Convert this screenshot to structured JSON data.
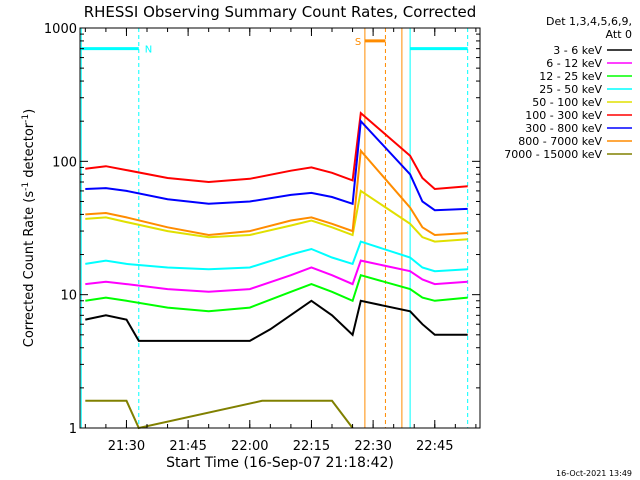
{
  "chart_data": {
    "type": "line",
    "title": "RHESSI Observing Summary Count Rates, Corrected",
    "xlabel": "Start Time (16-Sep-07 21:18:42)",
    "ylabel_main": "Corrected Count Rate (s",
    "ylabel_sup1": "-1",
    "ylabel_mid": " detector",
    "ylabel_sup2": "-1",
    "ylabel_end": ")",
    "y_scale": "log",
    "ylim": [
      1,
      1000
    ],
    "xlim": [
      "21:18:42",
      "22:56:00"
    ],
    "x_tick_labels": [
      "21:30",
      "21:45",
      "22:00",
      "22:15",
      "22:30",
      "22:45"
    ],
    "y_tick_labels": [
      "1",
      "10",
      "100",
      "1000"
    ],
    "legend_header": [
      "Det 1,3,4,5,6,9,",
      "Att 0"
    ],
    "legend_position": "right",
    "footer": "16-Oct-2021 13:49",
    "series": [
      {
        "name": "3 - 6 keV",
        "color": "#000000",
        "x": [
          "21:20",
          "21:25",
          "21:30",
          "21:33",
          "21:45",
          "22:00",
          "22:05",
          "22:15",
          "22:20",
          "22:25",
          "22:27",
          "22:39",
          "22:42",
          "22:45",
          "22:53"
        ],
        "y": [
          6.5,
          7.0,
          6.5,
          4.5,
          4.5,
          4.5,
          5.5,
          9.0,
          7.0,
          5.0,
          9.0,
          7.5,
          6.0,
          5.0,
          5.0
        ]
      },
      {
        "name": "6 - 12 keV",
        "color": "#ff00ff",
        "x": [
          "21:20",
          "21:25",
          "21:30",
          "21:40",
          "21:50",
          "22:00",
          "22:10",
          "22:15",
          "22:20",
          "22:25",
          "22:27",
          "22:39",
          "22:42",
          "22:45",
          "22:53"
        ],
        "y": [
          12,
          12.5,
          12,
          11,
          10.5,
          11,
          14,
          16,
          14,
          12,
          18,
          15,
          13,
          12,
          12.5
        ]
      },
      {
        "name": "12 - 25 keV",
        "color": "#00ff00",
        "x": [
          "21:20",
          "21:25",
          "21:30",
          "21:40",
          "21:50",
          "22:00",
          "22:10",
          "22:15",
          "22:20",
          "22:25",
          "22:27",
          "22:39",
          "22:42",
          "22:45",
          "22:53"
        ],
        "y": [
          9.0,
          9.5,
          9.0,
          8.0,
          7.5,
          8.0,
          10.5,
          12,
          10.5,
          9.0,
          14,
          11,
          9.5,
          9.0,
          9.5
        ]
      },
      {
        "name": "25 - 50 keV",
        "color": "#00ffff",
        "x": [
          "21:20",
          "21:25",
          "21:30",
          "21:40",
          "21:50",
          "22:00",
          "22:10",
          "22:15",
          "22:20",
          "22:25",
          "22:27",
          "22:39",
          "22:42",
          "22:45",
          "22:53"
        ],
        "y": [
          17,
          18,
          17,
          16,
          15.5,
          16,
          20,
          22,
          19,
          17,
          25,
          19,
          16,
          15,
          15.5
        ]
      },
      {
        "name": "50 - 100 keV",
        "color": "#e0e000",
        "x": [
          "21:20",
          "21:25",
          "21:30",
          "21:40",
          "21:50",
          "22:00",
          "22:10",
          "22:15",
          "22:20",
          "22:25",
          "22:27",
          "22:39",
          "22:42",
          "22:45",
          "22:53"
        ],
        "y": [
          37,
          38,
          35,
          30,
          27,
          28,
          33,
          36,
          32,
          28,
          60,
          34,
          27,
          25,
          26
        ]
      },
      {
        "name": "100 - 300 keV",
        "color": "#ff0000",
        "x": [
          "21:20",
          "21:25",
          "21:30",
          "21:40",
          "21:50",
          "22:00",
          "22:10",
          "22:15",
          "22:20",
          "22:25",
          "22:27",
          "22:39",
          "22:42",
          "22:45",
          "22:53"
        ],
        "y": [
          88,
          92,
          86,
          75,
          70,
          74,
          85,
          90,
          82,
          72,
          230,
          110,
          75,
          62,
          65
        ]
      },
      {
        "name": "300 - 800 keV",
        "color": "#0000ff",
        "x": [
          "21:20",
          "21:25",
          "21:30",
          "21:40",
          "21:50",
          "22:00",
          "22:10",
          "22:15",
          "22:20",
          "22:25",
          "22:27",
          "22:39",
          "22:42",
          "22:45",
          "22:53"
        ],
        "y": [
          62,
          63,
          60,
          52,
          48,
          50,
          56,
          58,
          54,
          48,
          200,
          80,
          50,
          43,
          44
        ]
      },
      {
        "name": "800 - 7000 keV",
        "color": "#ff8c00",
        "x": [
          "21:20",
          "21:25",
          "21:30",
          "21:40",
          "21:50",
          "22:00",
          "22:10",
          "22:15",
          "22:20",
          "22:25",
          "22:27",
          "22:39",
          "22:42",
          "22:45",
          "22:53"
        ],
        "y": [
          40,
          41,
          38,
          32,
          28,
          30,
          36,
          38,
          34,
          30,
          120,
          45,
          32,
          28,
          29
        ]
      },
      {
        "name": "7000 - 15000 keV",
        "color": "#808000",
        "x": [
          "21:20",
          "21:25",
          "21:30",
          "21:33",
          "22:03",
          "22:20",
          "22:25"
        ],
        "y": [
          1.6,
          1.6,
          1.6,
          1.0,
          1.6,
          1.6,
          1.0
        ]
      }
    ],
    "annotations": [
      {
        "text": "N",
        "color": "#00ffff",
        "x_start": "21:18:42",
        "x_end": "21:33",
        "y": 700
      },
      {
        "text": "S",
        "color": "#ff8c00",
        "x_start": "22:28",
        "x_end": "22:33",
        "y": 800
      }
    ]
  }
}
